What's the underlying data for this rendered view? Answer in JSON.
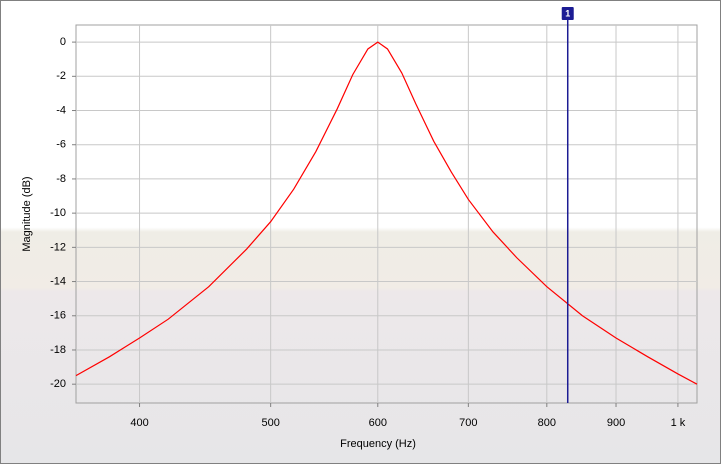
{
  "chart_data": {
    "type": "line",
    "x_label": "Frequency (Hz)",
    "y_label": "Magnitude (dB)",
    "xscale": "log",
    "x": [
      359,
      380,
      400,
      420,
      450,
      480,
      500,
      520,
      540,
      560,
      575,
      590,
      600,
      610,
      625,
      640,
      660,
      680,
      700,
      730,
      760,
      800,
      850,
      900,
      950,
      1000,
      1033
    ],
    "series": [
      {
        "color": "#ff0000",
        "values": [
          -19.5,
          -18.4,
          -17.3,
          -16.2,
          -14.3,
          -12.1,
          -10.5,
          -8.6,
          -6.4,
          -3.9,
          -1.9,
          -0.4,
          0,
          -0.4,
          -1.8,
          -3.6,
          -5.8,
          -7.6,
          -9.2,
          -11.1,
          -12.6,
          -14.3,
          -16.0,
          -17.3,
          -18.4,
          -19.4,
          -20.0
        ]
      }
    ],
    "xlim": [
      359,
      1033
    ],
    "ylim": [
      -21.1,
      1
    ],
    "xticks": [
      400,
      500,
      600,
      700,
      800,
      900,
      {
        "value": 1000,
        "label": "1 k"
      }
    ],
    "yticks": [
      0,
      -2,
      -4,
      -6,
      -8,
      -10,
      -12,
      -14,
      -16,
      -18,
      -20
    ],
    "grid": true,
    "marker": {
      "label": "1",
      "x": 829,
      "color": "#1c1c94"
    }
  }
}
